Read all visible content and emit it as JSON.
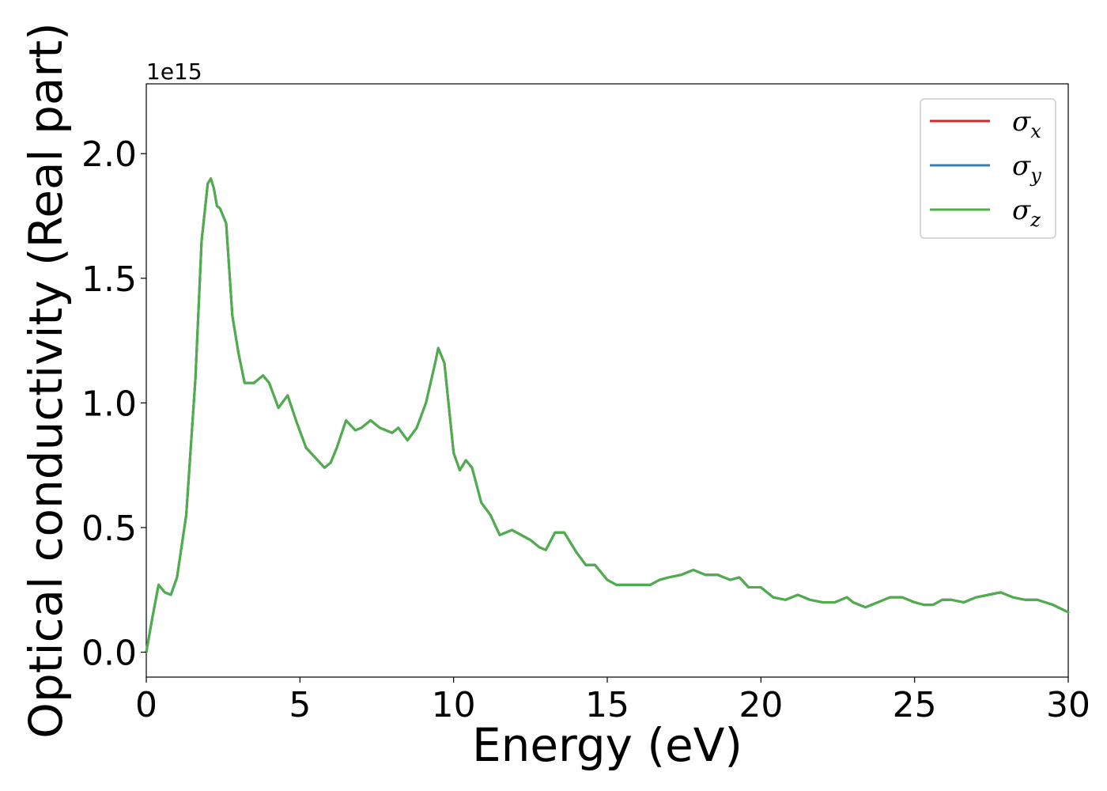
{
  "chart_data": {
    "type": "line",
    "xlabel": "Energy (eV)",
    "ylabel": "Optical conductivity (Real part)",
    "y_offset_label": "1e15",
    "xlim": [
      0,
      30
    ],
    "ylim": [
      -0.1,
      2.28
    ],
    "xticks": [
      0,
      5,
      10,
      15,
      20,
      25,
      30
    ],
    "xtick_labels": [
      "0",
      "5",
      "10",
      "15",
      "20",
      "25",
      "30"
    ],
    "yticks": [
      0.0,
      0.5,
      1.0,
      1.5,
      2.0
    ],
    "ytick_labels": [
      "0.0",
      "0.5",
      "1.0",
      "1.5",
      "2.0"
    ],
    "grid": false,
    "legend_position": "top-right",
    "x": [
      0,
      0.2,
      0.4,
      0.6,
      0.8,
      1.0,
      1.3,
      1.6,
      1.8,
      2.0,
      2.1,
      2.2,
      2.3,
      2.4,
      2.6,
      2.8,
      3.0,
      3.2,
      3.5,
      3.8,
      4.0,
      4.3,
      4.6,
      4.9,
      5.2,
      5.5,
      5.8,
      6.0,
      6.2,
      6.5,
      6.8,
      7.0,
      7.3,
      7.6,
      8.0,
      8.2,
      8.5,
      8.8,
      9.1,
      9.4,
      9.5,
      9.7,
      10.0,
      10.2,
      10.4,
      10.6,
      10.9,
      11.2,
      11.5,
      11.9,
      12.2,
      12.5,
      12.8,
      13.0,
      13.3,
      13.6,
      14.0,
      14.3,
      14.6,
      15.0,
      15.3,
      15.6,
      16.0,
      16.4,
      16.7,
      17.0,
      17.4,
      17.8,
      18.2,
      18.6,
      19.0,
      19.3,
      19.6,
      20.0,
      20.4,
      20.8,
      21.2,
      21.6,
      22.0,
      22.4,
      22.8,
      23.0,
      23.4,
      23.8,
      24.2,
      24.6,
      25.0,
      25.3,
      25.6,
      25.9,
      26.2,
      26.6,
      27.0,
      27.4,
      27.8,
      28.2,
      28.6,
      29.0,
      29.5,
      30.0
    ],
    "series": [
      {
        "name": "x",
        "color": "#d62728",
        "values": [
          0.0,
          0.14,
          0.27,
          0.24,
          0.23,
          0.3,
          0.55,
          1.1,
          1.65,
          1.88,
          1.9,
          1.86,
          1.79,
          1.78,
          1.72,
          1.35,
          1.2,
          1.08,
          1.08,
          1.11,
          1.08,
          0.98,
          1.03,
          0.92,
          0.82,
          0.78,
          0.74,
          0.76,
          0.82,
          0.93,
          0.89,
          0.9,
          0.93,
          0.9,
          0.88,
          0.9,
          0.85,
          0.9,
          1.0,
          1.16,
          1.22,
          1.16,
          0.8,
          0.73,
          0.77,
          0.74,
          0.6,
          0.55,
          0.47,
          0.49,
          0.47,
          0.45,
          0.42,
          0.41,
          0.48,
          0.48,
          0.4,
          0.35,
          0.35,
          0.29,
          0.27,
          0.27,
          0.27,
          0.27,
          0.29,
          0.3,
          0.31,
          0.33,
          0.31,
          0.31,
          0.29,
          0.3,
          0.26,
          0.26,
          0.22,
          0.21,
          0.23,
          0.21,
          0.2,
          0.2,
          0.22,
          0.2,
          0.18,
          0.2,
          0.22,
          0.22,
          0.2,
          0.19,
          0.19,
          0.21,
          0.21,
          0.2,
          0.22,
          0.23,
          0.24,
          0.22,
          0.21,
          0.21,
          0.19,
          0.16
        ]
      },
      {
        "name": "y",
        "color": "#377eb8",
        "values": [
          0.0,
          0.14,
          0.27,
          0.24,
          0.23,
          0.3,
          0.55,
          1.1,
          1.65,
          1.88,
          1.9,
          1.86,
          1.79,
          1.78,
          1.72,
          1.35,
          1.2,
          1.08,
          1.08,
          1.11,
          1.08,
          0.98,
          1.03,
          0.92,
          0.82,
          0.78,
          0.74,
          0.76,
          0.82,
          0.93,
          0.89,
          0.9,
          0.93,
          0.9,
          0.88,
          0.9,
          0.85,
          0.9,
          1.0,
          1.16,
          1.22,
          1.16,
          0.8,
          0.73,
          0.77,
          0.74,
          0.6,
          0.55,
          0.47,
          0.49,
          0.47,
          0.45,
          0.42,
          0.41,
          0.48,
          0.48,
          0.4,
          0.35,
          0.35,
          0.29,
          0.27,
          0.27,
          0.27,
          0.27,
          0.29,
          0.3,
          0.31,
          0.33,
          0.31,
          0.31,
          0.29,
          0.3,
          0.26,
          0.26,
          0.22,
          0.21,
          0.23,
          0.21,
          0.2,
          0.2,
          0.22,
          0.2,
          0.18,
          0.2,
          0.22,
          0.22,
          0.2,
          0.19,
          0.19,
          0.21,
          0.21,
          0.2,
          0.22,
          0.23,
          0.24,
          0.22,
          0.21,
          0.21,
          0.19,
          0.16
        ]
      },
      {
        "name": "z",
        "color": "#4daf4a",
        "values": [
          0.0,
          0.14,
          0.27,
          0.24,
          0.23,
          0.3,
          0.55,
          1.1,
          1.65,
          1.88,
          1.9,
          1.86,
          1.79,
          1.78,
          1.72,
          1.35,
          1.2,
          1.08,
          1.08,
          1.11,
          1.08,
          0.98,
          1.03,
          0.92,
          0.82,
          0.78,
          0.74,
          0.76,
          0.82,
          0.93,
          0.89,
          0.9,
          0.93,
          0.9,
          0.88,
          0.9,
          0.85,
          0.9,
          1.0,
          1.16,
          1.22,
          1.16,
          0.8,
          0.73,
          0.77,
          0.74,
          0.6,
          0.55,
          0.47,
          0.49,
          0.47,
          0.45,
          0.42,
          0.41,
          0.48,
          0.48,
          0.4,
          0.35,
          0.35,
          0.29,
          0.27,
          0.27,
          0.27,
          0.27,
          0.29,
          0.3,
          0.31,
          0.33,
          0.31,
          0.31,
          0.29,
          0.3,
          0.26,
          0.26,
          0.22,
          0.21,
          0.23,
          0.21,
          0.2,
          0.2,
          0.22,
          0.2,
          0.18,
          0.2,
          0.22,
          0.22,
          0.2,
          0.19,
          0.19,
          0.21,
          0.21,
          0.2,
          0.22,
          0.23,
          0.24,
          0.22,
          0.21,
          0.21,
          0.19,
          0.16
        ]
      }
    ],
    "legend": [
      {
        "symbol": "σ",
        "sub": "x",
        "color": "#d62728"
      },
      {
        "symbol": "σ",
        "sub": "y",
        "color": "#377eb8"
      },
      {
        "symbol": "σ",
        "sub": "z",
        "color": "#4daf4a"
      }
    ]
  }
}
